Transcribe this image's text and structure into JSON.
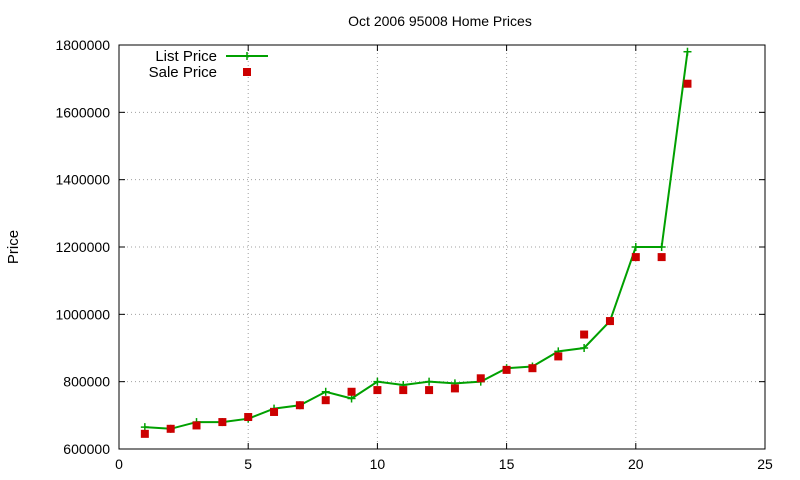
{
  "chart_data": {
    "type": "line",
    "title": "Oct 2006 95008 Home Prices",
    "xlabel": "",
    "ylabel": "Price",
    "xlim": [
      0,
      25
    ],
    "ylim": [
      600000,
      1800000
    ],
    "xticks": [
      0,
      5,
      10,
      15,
      20,
      25
    ],
    "yticks": [
      600000,
      800000,
      1000000,
      1200000,
      1400000,
      1600000,
      1800000
    ],
    "grid": true,
    "legend_position": "top-left",
    "series": [
      {
        "name": "List Price",
        "style": "line+cross",
        "color": "#00a000",
        "x": [
          1,
          2,
          3,
          4,
          5,
          6,
          7,
          8,
          9,
          10,
          11,
          12,
          13,
          14,
          15,
          16,
          17,
          18,
          19,
          20,
          21,
          22
        ],
        "y": [
          665000,
          660000,
          680000,
          680000,
          690000,
          720000,
          730000,
          770000,
          750000,
          800000,
          790000,
          800000,
          795000,
          800000,
          840000,
          845000,
          890000,
          900000,
          980000,
          1200000,
          1200000,
          1780000
        ]
      },
      {
        "name": "Sale Price",
        "style": "square",
        "color": "#cc0000",
        "x": [
          1,
          2,
          3,
          4,
          5,
          6,
          7,
          8,
          9,
          10,
          11,
          12,
          13,
          14,
          15,
          16,
          17,
          18,
          19,
          20,
          21,
          22
        ],
        "y": [
          645000,
          660000,
          670000,
          680000,
          695000,
          710000,
          730000,
          745000,
          770000,
          775000,
          775000,
          775000,
          780000,
          810000,
          835000,
          840000,
          875000,
          940000,
          980000,
          1170000,
          1170000,
          1685000
        ]
      }
    ]
  }
}
